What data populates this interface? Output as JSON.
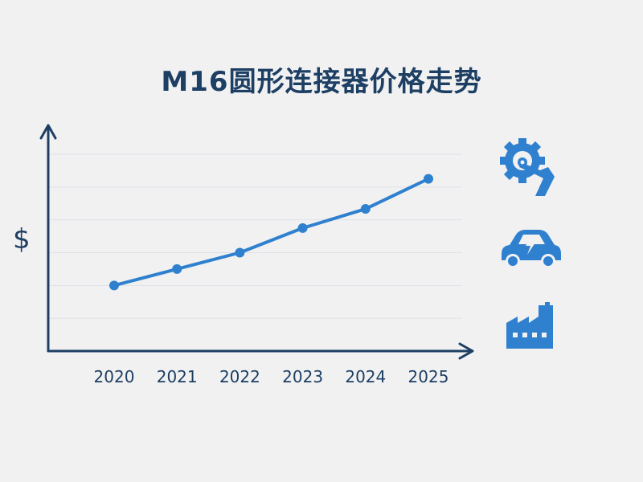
{
  "chart_data": {
    "type": "line",
    "title": "M16圆形连接器价格走势",
    "ylabel": "$",
    "xlabel": "",
    "categories": [
      "2020",
      "2021",
      "2022",
      "2023",
      "2024",
      "2025"
    ],
    "series": [
      {
        "values": [
          1.0,
          1.6,
          2.2,
          3.1,
          3.8,
          4.9
        ]
      }
    ],
    "ylim": [
      -1.4,
      5.8
    ],
    "grid": true,
    "line_color": "#2f80cf",
    "axis_color": "#1d3f63"
  },
  "side_icons": [
    "gear-robot-arm-icon",
    "electric-car-icon",
    "factory-icon"
  ],
  "colors": {
    "accent": "#2f80cf",
    "dark": "#1d3f63",
    "background": "#f1f1f2"
  }
}
